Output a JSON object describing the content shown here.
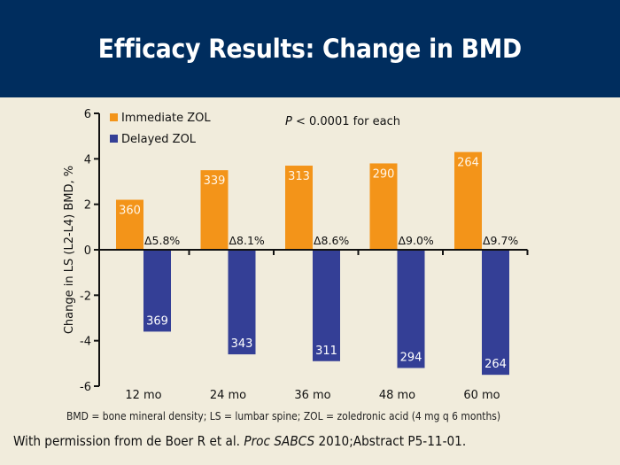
{
  "slide": {
    "title": "Efficacy Results: Change in BMD",
    "footnote": "BMD = bone mineral density; LS = lumbar spine; ZOL = zoledronic acid (4 mg q 6 months)",
    "citation_prefix": "With permission from de Boer R et al. ",
    "citation_journal": "Proc SABCS",
    "citation_suffix": " 2010;Abstract P5-11-01."
  },
  "colors": {
    "header_bg": "#002d5e",
    "background": "#f1ecdc",
    "immediate": "#f39419",
    "delayed": "#343f96"
  },
  "chart_data": {
    "type": "bar",
    "title": "",
    "xlabel": "",
    "ylabel": "Change in LS (L2-L4) BMD, %",
    "ylim": [
      -6,
      6
    ],
    "yticks": [
      6,
      4,
      2,
      0,
      -2,
      -4,
      -6
    ],
    "grid": false,
    "legend_position": "top-left",
    "annotation": {
      "p_italic": "P",
      "p_rest": " < 0.0001 for each"
    },
    "categories": [
      "12 mo",
      "24 mo",
      "36 mo",
      "48 mo",
      "60 mo"
    ],
    "series": [
      {
        "name": "Immediate ZOL",
        "color": "#f39419",
        "values": [
          2.2,
          3.5,
          3.7,
          3.8,
          4.3
        ],
        "n_labels": [
          "360",
          "339",
          "313",
          "290",
          "264"
        ]
      },
      {
        "name": "Delayed ZOL",
        "color": "#343f96",
        "values": [
          -3.6,
          -4.6,
          -4.9,
          -5.2,
          -5.5
        ],
        "n_labels": [
          "369",
          "343",
          "311",
          "294",
          "264"
        ]
      }
    ],
    "difference_labels": [
      "Δ5.8%",
      "Δ8.1%",
      "Δ8.6%",
      "Δ9.0%",
      "Δ9.7%"
    ]
  }
}
